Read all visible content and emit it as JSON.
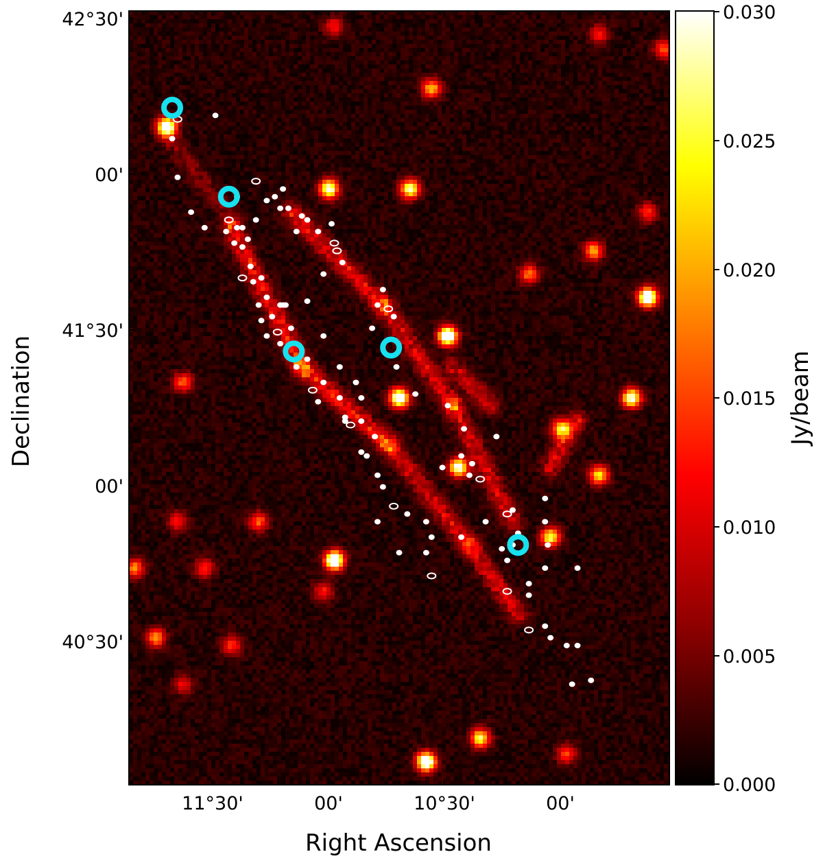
{
  "chart_data": {
    "type": "heatmap",
    "xlabel": "Right Ascension",
    "ylabel": "Declination",
    "x_tick_labels": [
      "11°30'",
      "00'",
      "10°30'",
      "00'"
    ],
    "y_tick_labels": [
      "42°30'",
      "00'",
      "41°30'",
      "00'",
      "40°30'"
    ],
    "colorbar": {
      "label": "Jy/beam",
      "range": [
        0.0,
        0.03
      ],
      "ticks": [
        "0.030",
        "0.025",
        "0.020",
        "0.015",
        "0.010",
        "0.005",
        "0.000"
      ],
      "colormap": "hot",
      "colors": [
        "#000000",
        "#8b0000",
        "#ff0000",
        "#ff8000",
        "#ffff00",
        "#ffffff"
      ]
    },
    "background_level": 0.002,
    "bright_sources": [
      {
        "u": 0.07,
        "v": 0.15,
        "flux": 0.03
      },
      {
        "u": 0.37,
        "v": 0.23,
        "flux": 0.024
      },
      {
        "u": 0.52,
        "v": 0.23,
        "flux": 0.022
      },
      {
        "u": 0.56,
        "v": 0.1,
        "flux": 0.016
      },
      {
        "u": 0.59,
        "v": 0.42,
        "flux": 0.03
      },
      {
        "u": 0.5,
        "v": 0.5,
        "flux": 0.028
      },
      {
        "u": 0.96,
        "v": 0.37,
        "flux": 0.03
      },
      {
        "u": 0.74,
        "v": 0.34,
        "flux": 0.013
      },
      {
        "u": 0.86,
        "v": 0.31,
        "flux": 0.015
      },
      {
        "u": 0.93,
        "v": 0.5,
        "flux": 0.024
      },
      {
        "u": 0.8,
        "v": 0.54,
        "flux": 0.018
      },
      {
        "u": 0.61,
        "v": 0.59,
        "flux": 0.024
      },
      {
        "u": 0.87,
        "v": 0.6,
        "flux": 0.018
      },
      {
        "u": 0.38,
        "v": 0.71,
        "flux": 0.03
      },
      {
        "u": 0.78,
        "v": 0.68,
        "flux": 0.02
      },
      {
        "u": 0.55,
        "v": 0.97,
        "flux": 0.03
      },
      {
        "u": 0.65,
        "v": 0.94,
        "flux": 0.02
      },
      {
        "u": 0.05,
        "v": 0.81,
        "flux": 0.014
      },
      {
        "u": 0.1,
        "v": 0.48,
        "flux": 0.012
      },
      {
        "u": 0.24,
        "v": 0.66,
        "flux": 0.012
      },
      {
        "u": 0.38,
        "v": 0.02,
        "flux": 0.009
      },
      {
        "u": 0.87,
        "v": 0.03,
        "flux": 0.009
      },
      {
        "u": 0.99,
        "v": 0.05,
        "flux": 0.012
      },
      {
        "u": 0.96,
        "v": 0.26,
        "flux": 0.01
      },
      {
        "u": 0.14,
        "v": 0.72,
        "flux": 0.01
      },
      {
        "u": 0.09,
        "v": 0.66,
        "flux": 0.009
      },
      {
        "u": 0.19,
        "v": 0.82,
        "flux": 0.01
      },
      {
        "u": 0.1,
        "v": 0.87,
        "flux": 0.008
      },
      {
        "u": 0.81,
        "v": 0.96,
        "flux": 0.011
      },
      {
        "u": 0.36,
        "v": 0.75,
        "flux": 0.009
      },
      {
        "u": 0.01,
        "v": 0.72,
        "flux": 0.014
      }
    ],
    "diffuse_emission": [
      {
        "u0": 0.19,
        "v0": 0.28,
        "u1": 0.32,
        "v1": 0.46,
        "flux": 0.01
      },
      {
        "u0": 0.32,
        "v0": 0.46,
        "u1": 0.48,
        "v1": 0.56,
        "flux": 0.01
      },
      {
        "u0": 0.48,
        "v0": 0.56,
        "u1": 0.63,
        "v1": 0.69,
        "flux": 0.008
      },
      {
        "u0": 0.63,
        "v0": 0.69,
        "u1": 0.72,
        "v1": 0.78,
        "flux": 0.008
      },
      {
        "u0": 0.3,
        "v0": 0.26,
        "u1": 0.47,
        "v1": 0.38,
        "flux": 0.009
      },
      {
        "u0": 0.47,
        "v0": 0.38,
        "u1": 0.6,
        "v1": 0.51,
        "flux": 0.008
      },
      {
        "u0": 0.6,
        "v0": 0.51,
        "u1": 0.71,
        "v1": 0.66,
        "flux": 0.008
      },
      {
        "u0": 0.08,
        "v0": 0.17,
        "u1": 0.19,
        "v1": 0.27,
        "flux": 0.004
      },
      {
        "u0": 0.78,
        "v0": 0.59,
        "u1": 0.83,
        "v1": 0.53,
        "flux": 0.008
      },
      {
        "u0": 0.6,
        "v0": 0.46,
        "u1": 0.67,
        "v1": 0.51,
        "flux": 0.007
      }
    ],
    "cyan_markers": [
      {
        "u": 0.08,
        "v": 0.125
      },
      {
        "u": 0.185,
        "v": 0.24
      },
      {
        "u": 0.305,
        "v": 0.44
      },
      {
        "u": 0.485,
        "v": 0.435
      },
      {
        "u": 0.72,
        "v": 0.69
      }
    ],
    "white_contours": [
      {
        "u": 0.09,
        "v": 0.14
      },
      {
        "u": 0.08,
        "v": 0.165
      },
      {
        "u": 0.16,
        "v": 0.135
      },
      {
        "u": 0.09,
        "v": 0.215
      },
      {
        "u": 0.115,
        "v": 0.26
      },
      {
        "u": 0.14,
        "v": 0.28
      },
      {
        "u": 0.18,
        "v": 0.285
      },
      {
        "u": 0.185,
        "v": 0.27
      },
      {
        "u": 0.2,
        "v": 0.28
      },
      {
        "u": 0.235,
        "v": 0.27
      },
      {
        "u": 0.255,
        "v": 0.245
      },
      {
        "u": 0.27,
        "v": 0.24
      },
      {
        "u": 0.28,
        "v": 0.255
      },
      {
        "u": 0.285,
        "v": 0.23
      },
      {
        "u": 0.235,
        "v": 0.22
      },
      {
        "u": 0.2,
        "v": 0.24
      },
      {
        "u": 0.21,
        "v": 0.28
      },
      {
        "u": 0.195,
        "v": 0.3
      },
      {
        "u": 0.21,
        "v": 0.305
      },
      {
        "u": 0.22,
        "v": 0.295
      },
      {
        "u": 0.225,
        "v": 0.33
      },
      {
        "u": 0.21,
        "v": 0.345
      },
      {
        "u": 0.23,
        "v": 0.35
      },
      {
        "u": 0.245,
        "v": 0.345
      },
      {
        "u": 0.255,
        "v": 0.37
      },
      {
        "u": 0.24,
        "v": 0.38
      },
      {
        "u": 0.245,
        "v": 0.4
      },
      {
        "u": 0.265,
        "v": 0.395
      },
      {
        "u": 0.275,
        "v": 0.415
      },
      {
        "u": 0.28,
        "v": 0.43
      },
      {
        "u": 0.255,
        "v": 0.42
      },
      {
        "u": 0.3,
        "v": 0.41
      },
      {
        "u": 0.285,
        "v": 0.38
      },
      {
        "u": 0.33,
        "v": 0.45
      },
      {
        "u": 0.31,
        "v": 0.46
      },
      {
        "u": 0.34,
        "v": 0.49
      },
      {
        "u": 0.36,
        "v": 0.48
      },
      {
        "u": 0.35,
        "v": 0.505
      },
      {
        "u": 0.39,
        "v": 0.5
      },
      {
        "u": 0.28,
        "v": 0.38
      },
      {
        "u": 0.33,
        "v": 0.375
      },
      {
        "u": 0.36,
        "v": 0.34
      },
      {
        "u": 0.38,
        "v": 0.3
      },
      {
        "u": 0.35,
        "v": 0.285
      },
      {
        "u": 0.33,
        "v": 0.27
      },
      {
        "u": 0.31,
        "v": 0.285
      },
      {
        "u": 0.295,
        "v": 0.255
      },
      {
        "u": 0.32,
        "v": 0.265
      },
      {
        "u": 0.375,
        "v": 0.275
      },
      {
        "u": 0.385,
        "v": 0.31
      },
      {
        "u": 0.395,
        "v": 0.325
      },
      {
        "u": 0.36,
        "v": 0.42
      },
      {
        "u": 0.39,
        "v": 0.46
      },
      {
        "u": 0.42,
        "v": 0.48
      },
      {
        "u": 0.43,
        "v": 0.5
      },
      {
        "u": 0.4,
        "v": 0.525
      },
      {
        "u": 0.41,
        "v": 0.535
      },
      {
        "u": 0.43,
        "v": 0.53
      },
      {
        "u": 0.43,
        "v": 0.57
      },
      {
        "u": 0.44,
        "v": 0.575
      },
      {
        "u": 0.455,
        "v": 0.55
      },
      {
        "u": 0.46,
        "v": 0.6
      },
      {
        "u": 0.47,
        "v": 0.615
      },
      {
        "u": 0.49,
        "v": 0.64
      },
      {
        "u": 0.515,
        "v": 0.65
      },
      {
        "u": 0.55,
        "v": 0.66
      },
      {
        "u": 0.56,
        "v": 0.68
      },
      {
        "u": 0.45,
        "v": 0.41
      },
      {
        "u": 0.46,
        "v": 0.38
      },
      {
        "u": 0.47,
        "v": 0.36
      },
      {
        "u": 0.48,
        "v": 0.385
      },
      {
        "u": 0.49,
        "v": 0.395
      },
      {
        "u": 0.495,
        "v": 0.46
      },
      {
        "u": 0.53,
        "v": 0.495
      },
      {
        "u": 0.59,
        "v": 0.51
      },
      {
        "u": 0.62,
        "v": 0.54
      },
      {
        "u": 0.635,
        "v": 0.585
      },
      {
        "u": 0.65,
        "v": 0.605
      },
      {
        "u": 0.68,
        "v": 0.55
      },
      {
        "u": 0.69,
        "v": 0.695
      },
      {
        "u": 0.7,
        "v": 0.71
      },
      {
        "u": 0.71,
        "v": 0.69
      },
      {
        "u": 0.72,
        "v": 0.675
      },
      {
        "u": 0.71,
        "v": 0.645
      },
      {
        "u": 0.7,
        "v": 0.65
      },
      {
        "u": 0.74,
        "v": 0.755
      },
      {
        "u": 0.77,
        "v": 0.63
      },
      {
        "u": 0.775,
        "v": 0.69
      },
      {
        "u": 0.83,
        "v": 0.72
      },
      {
        "u": 0.77,
        "v": 0.72
      },
      {
        "u": 0.74,
        "v": 0.74
      },
      {
        "u": 0.7,
        "v": 0.75
      },
      {
        "u": 0.615,
        "v": 0.575
      },
      {
        "u": 0.58,
        "v": 0.59
      },
      {
        "u": 0.63,
        "v": 0.6
      },
      {
        "u": 0.66,
        "v": 0.66
      },
      {
        "u": 0.77,
        "v": 0.66
      },
      {
        "u": 0.77,
        "v": 0.795
      },
      {
        "u": 0.74,
        "v": 0.8
      },
      {
        "u": 0.78,
        "v": 0.81
      },
      {
        "u": 0.81,
        "v": 0.82
      },
      {
        "u": 0.83,
        "v": 0.82
      },
      {
        "u": 0.82,
        "v": 0.87
      },
      {
        "u": 0.855,
        "v": 0.865
      },
      {
        "u": 0.615,
        "v": 0.68
      },
      {
        "u": 0.56,
        "v": 0.73
      },
      {
        "u": 0.5,
        "v": 0.7
      },
      {
        "u": 0.46,
        "v": 0.66
      },
      {
        "u": 0.4,
        "v": 0.53
      },
      {
        "u": 0.29,
        "v": 0.38
      },
      {
        "u": 0.55,
        "v": 0.7
      }
    ]
  }
}
